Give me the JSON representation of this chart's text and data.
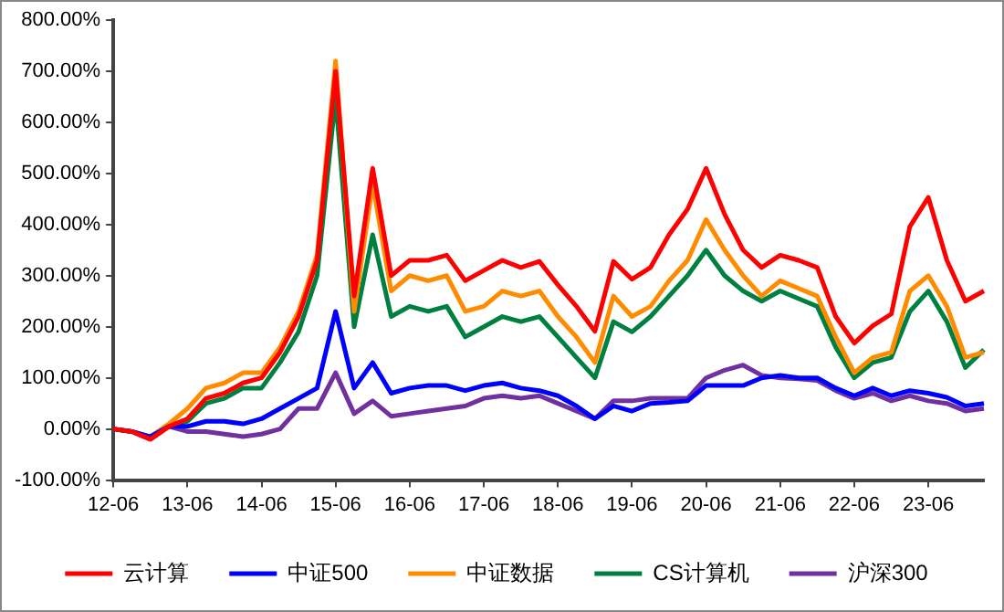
{
  "chart_data": {
    "type": "line",
    "categories": [
      "12-06",
      null,
      null,
      null,
      "13-06",
      null,
      null,
      null,
      "14-06",
      null,
      null,
      null,
      "15-06",
      null,
      null,
      null,
      "16-06",
      null,
      null,
      null,
      "17-06",
      null,
      null,
      null,
      "18-06",
      null,
      null,
      null,
      "19-06",
      null,
      null,
      null,
      "20-06",
      null,
      null,
      null,
      "21-06",
      null,
      null,
      null,
      "22-06",
      null,
      null,
      null,
      "23-06",
      null,
      null,
      null
    ],
    "series": [
      {
        "name": "云计算",
        "color": "#ff0000",
        "values": [
          0,
          -5,
          -20,
          5,
          20,
          60,
          70,
          90,
          100,
          150,
          220,
          330,
          700,
          260,
          510,
          300,
          330,
          330,
          340,
          290,
          310,
          330,
          316,
          328,
          282,
          240,
          191,
          328,
          293,
          316,
          380,
          430,
          510,
          420,
          350,
          316,
          340,
          330,
          316,
          220,
          168,
          202,
          225,
          396,
          453,
          330,
          250,
          270
        ]
      },
      {
        "name": "中证500",
        "color": "#0000ff",
        "values": [
          0,
          -5,
          -15,
          5,
          5,
          15,
          15,
          10,
          20,
          40,
          60,
          80,
          230,
          80,
          130,
          70,
          80,
          85,
          85,
          75,
          85,
          90,
          80,
          75,
          65,
          45,
          20,
          45,
          35,
          50,
          52,
          55,
          85,
          85,
          85,
          100,
          105,
          100,
          100,
          80,
          65,
          80,
          65,
          75,
          70,
          62,
          45,
          50
        ]
      },
      {
        "name": "中证数据",
        "color": "#ff8c00",
        "values": [
          0,
          -5,
          -15,
          10,
          40,
          80,
          90,
          110,
          110,
          160,
          230,
          340,
          720,
          230,
          480,
          270,
          300,
          290,
          300,
          230,
          240,
          270,
          260,
          270,
          220,
          180,
          130,
          260,
          220,
          240,
          290,
          330,
          410,
          350,
          300,
          260,
          290,
          275,
          260,
          180,
          110,
          140,
          150,
          270,
          300,
          240,
          140,
          150
        ]
      },
      {
        "name": "CS计算机",
        "color": "#008040",
        "values": [
          null,
          null,
          null,
          5,
          15,
          50,
          60,
          80,
          80,
          130,
          190,
          300,
          650,
          200,
          380,
          220,
          240,
          230,
          240,
          180,
          200,
          220,
          210,
          220,
          180,
          140,
          100,
          210,
          190,
          220,
          260,
          300,
          350,
          300,
          270,
          250,
          270,
          255,
          240,
          160,
          100,
          130,
          140,
          230,
          270,
          210,
          120,
          155
        ]
      },
      {
        "name": "沪深300",
        "color": "#7030a0",
        "values": [
          0,
          -5,
          -20,
          5,
          -5,
          -5,
          -10,
          -15,
          -10,
          0,
          40,
          40,
          110,
          30,
          55,
          25,
          30,
          35,
          40,
          45,
          60,
          65,
          60,
          65,
          50,
          35,
          20,
          55,
          55,
          60,
          60,
          60,
          100,
          115,
          125,
          105,
          100,
          98,
          95,
          75,
          60,
          70,
          55,
          65,
          55,
          50,
          35,
          40
        ]
      }
    ],
    "ylim": [
      -100,
      800
    ],
    "yticks": [
      {
        "value": -100,
        "label": "-100.00%"
      },
      {
        "value": 0,
        "label": "0.00%"
      },
      {
        "value": 100,
        "label": "100.00%"
      },
      {
        "value": 200,
        "label": "200.00%"
      },
      {
        "value": 300,
        "label": "300.00%"
      },
      {
        "value": 400,
        "label": "400.00%"
      },
      {
        "value": 500,
        "label": "500.00%"
      },
      {
        "value": 600,
        "label": "600.00%"
      },
      {
        "value": 700,
        "label": "700.00%"
      },
      {
        "value": 800,
        "label": "800.00%"
      }
    ],
    "grid": false,
    "legend": "bottom",
    "marker": "none",
    "line_style": "solid"
  }
}
